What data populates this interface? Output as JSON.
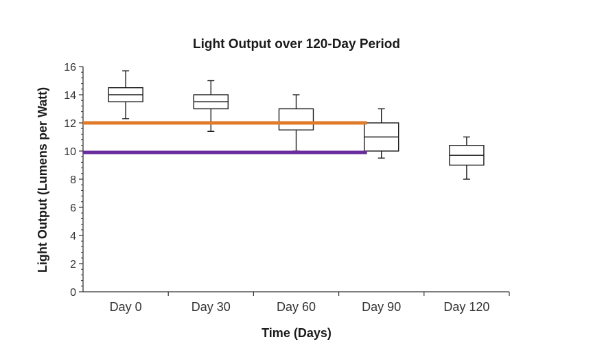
{
  "chart_data": {
    "type": "box",
    "title": "Light Output over 120-Day Period",
    "xlabel": "Time (Days)",
    "ylabel": "Light Output (Lumens per Watt)",
    "ylim": [
      0,
      16
    ],
    "yticks": [
      "0",
      "2",
      "4",
      "6",
      "8",
      "10",
      "12",
      "14",
      "16"
    ],
    "categories": [
      "Day 0",
      "Day 30",
      "Day 60",
      "Day 90",
      "Day 120"
    ],
    "boxes": [
      {
        "category": "Day 0",
        "min": 12.3,
        "q1": 13.5,
        "median": 14.0,
        "q3": 14.5,
        "max": 15.7
      },
      {
        "category": "Day 30",
        "min": 11.4,
        "q1": 13.0,
        "median": 13.5,
        "q3": 14.0,
        "max": 15.0
      },
      {
        "category": "Day 60",
        "min": 10.0,
        "q1": 11.5,
        "median": 12.0,
        "q3": 13.0,
        "max": 14.0
      },
      {
        "category": "Day 90",
        "min": 9.5,
        "q1": 10.0,
        "median": 11.0,
        "q3": 12.0,
        "max": 13.0
      },
      {
        "category": "Day 120",
        "min": 8.0,
        "q1": 9.0,
        "median": 9.7,
        "q3": 10.4,
        "max": 11.0
      }
    ],
    "reference_lines": [
      {
        "y": 12.0,
        "color": "#e07b2a",
        "x_start": "Day 0",
        "x_end": "Day 90"
      },
      {
        "y": 9.9,
        "color": "#6a2c9c",
        "x_start": "Day 0",
        "x_end": "Day 90"
      }
    ],
    "grid": false
  }
}
